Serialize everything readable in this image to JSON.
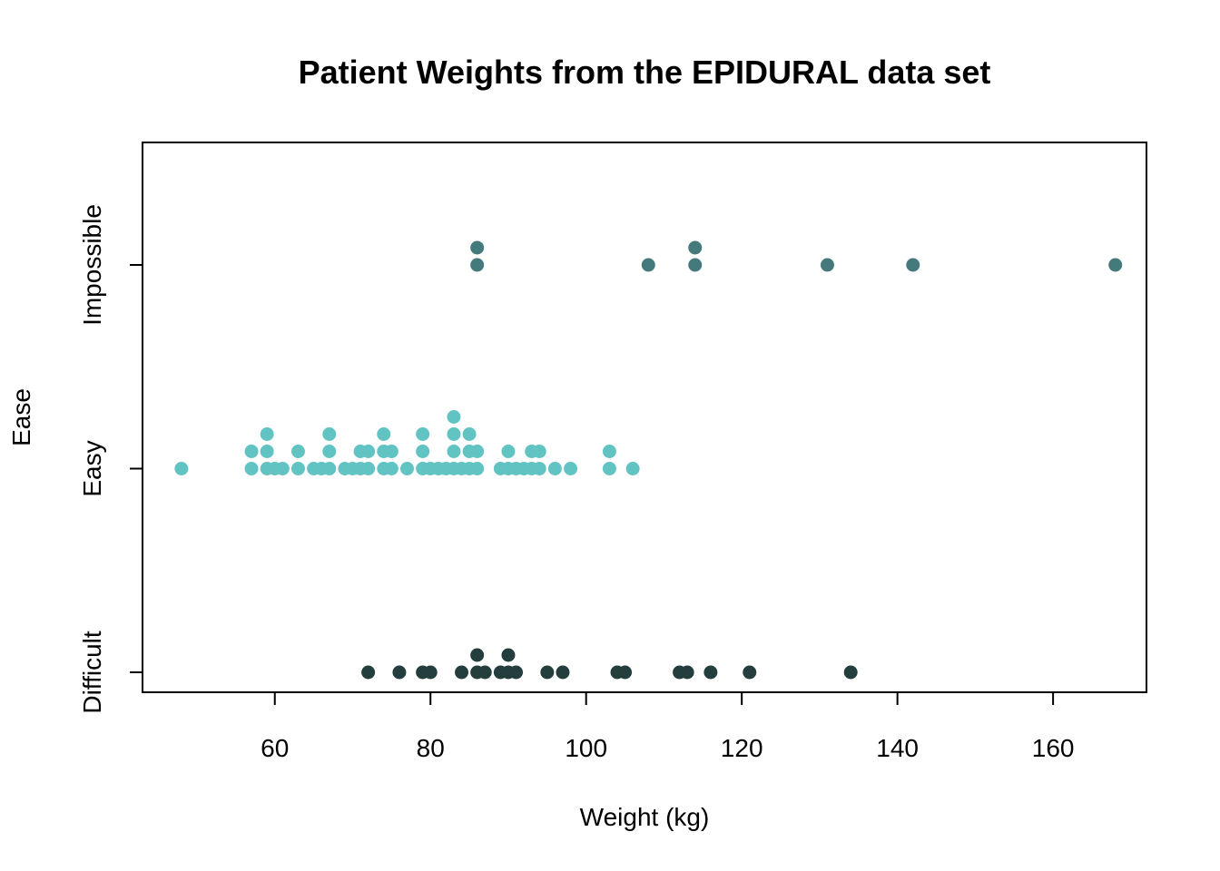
{
  "chart_data": {
    "type": "scatter",
    "title": "Patient Weights from the EPIDURAL data set",
    "xlabel": "Weight (kg)",
    "ylabel": "Ease",
    "xlim": [
      43,
      172
    ],
    "x_ticks": [
      60,
      80,
      100,
      120,
      140,
      160
    ],
    "categories": [
      "Difficult",
      "Easy",
      "Impossible"
    ],
    "grid": false,
    "legend": "none",
    "stacked_dots": true,
    "series": [
      {
        "category": "Difficult",
        "color": "#243d3d",
        "values": [
          72,
          76,
          79,
          80,
          84,
          86,
          86,
          87,
          89,
          90,
          90,
          91,
          95,
          97,
          104,
          105,
          112,
          113,
          116,
          121,
          134
        ]
      },
      {
        "category": "Easy",
        "color": "#62c3c3",
        "values": [
          48,
          57,
          57,
          59,
          59,
          59,
          60,
          61,
          63,
          63,
          65,
          66,
          67,
          67,
          67,
          69,
          70,
          71,
          71,
          72,
          72,
          74,
          74,
          74,
          75,
          75,
          77,
          79,
          79,
          79,
          80,
          81,
          82,
          83,
          83,
          83,
          83,
          84,
          85,
          85,
          85,
          86,
          86,
          89,
          90,
          90,
          91,
          92,
          93,
          93,
          94,
          94,
          96,
          98,
          103,
          103,
          106
        ]
      },
      {
        "category": "Impossible",
        "color": "#457a7c",
        "values": [
          86,
          86,
          108,
          114,
          114,
          131,
          142,
          168
        ]
      }
    ]
  }
}
